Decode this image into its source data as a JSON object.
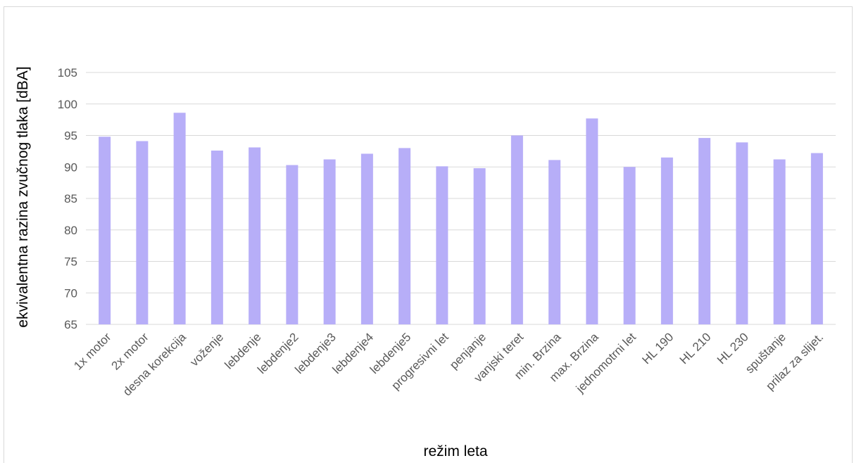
{
  "chart_data": {
    "type": "bar",
    "title": "",
    "xlabel": "režim leta",
    "ylabel": "ekvivalentna razina zvučnog tlaka [dBA]",
    "ylim": [
      65,
      105
    ],
    "yticks": [
      65,
      70,
      75,
      80,
      85,
      90,
      95,
      100,
      105
    ],
    "grid": true,
    "legend": "none",
    "bar_color": "#b7aef8",
    "categories": [
      "1x motor",
      "2x motor",
      "desna korekcija",
      "voženje",
      "lebdenje",
      "lebdenje2",
      "lebdenje3",
      "lebdenje4",
      "lebdenje5",
      "progresivni let",
      "penjanje",
      "vanjski teret",
      "min. Brzina",
      "max. Brzina",
      "jednomotrni let",
      "HL 190",
      "HL 210",
      "HL 230",
      "spuštanje",
      "prilaz za slijet."
    ],
    "values": [
      94.8,
      94.1,
      98.6,
      92.6,
      93.1,
      90.3,
      91.2,
      92.1,
      93.0,
      90.1,
      89.8,
      95.0,
      91.1,
      97.7,
      90.0,
      91.5,
      94.6,
      93.9,
      91.2,
      92.2
    ]
  }
}
